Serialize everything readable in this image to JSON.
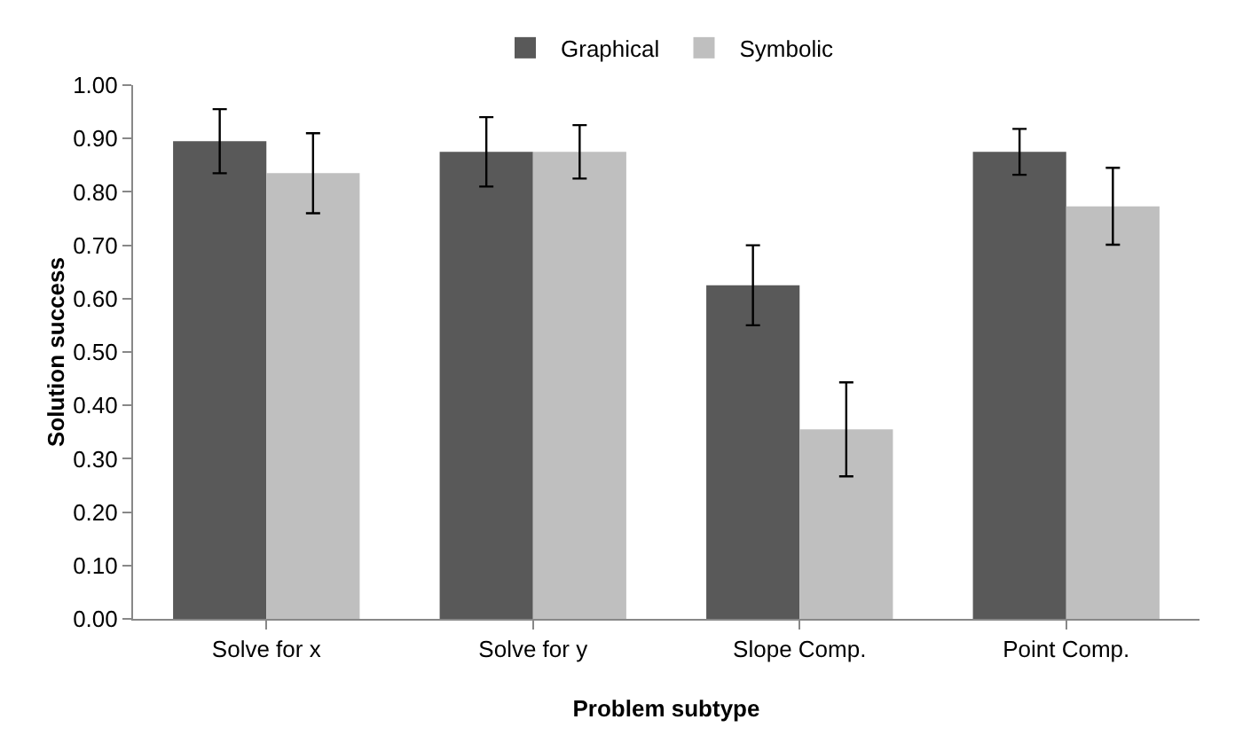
{
  "chart_data": {
    "type": "bar",
    "xlabel": "Problem subtype",
    "ylabel": "Solution success",
    "categories": [
      "Solve for x",
      "Solve for y",
      "Slope Comp.",
      "Point Comp."
    ],
    "series": [
      {
        "name": "Graphical",
        "color": "#595959",
        "values": [
          0.895,
          0.875,
          0.625,
          0.875
        ],
        "errors": [
          0.06,
          0.065,
          0.075,
          0.043
        ]
      },
      {
        "name": "Symbolic",
        "color": "#bfbfbf",
        "values": [
          0.835,
          0.875,
          0.355,
          0.773
        ],
        "errors": [
          0.075,
          0.05,
          0.088,
          0.072
        ]
      }
    ],
    "ylim": [
      0,
      1
    ],
    "yticks": [
      {
        "value": 0,
        "label": "0.00"
      },
      {
        "value": 0.1,
        "label": "0.10"
      },
      {
        "value": 0.2,
        "label": "0.20"
      },
      {
        "value": 0.3,
        "label": "0.30"
      },
      {
        "value": 0.4,
        "label": "0.40"
      },
      {
        "value": 0.5,
        "label": "0.50"
      },
      {
        "value": 0.6,
        "label": "0.60"
      },
      {
        "value": 0.7,
        "label": "0.70"
      },
      {
        "value": 0.8,
        "label": "0.80"
      },
      {
        "value": 0.9,
        "label": "0.90"
      },
      {
        "value": 1,
        "label": "1.00"
      }
    ],
    "grid": false,
    "legend": "top"
  }
}
